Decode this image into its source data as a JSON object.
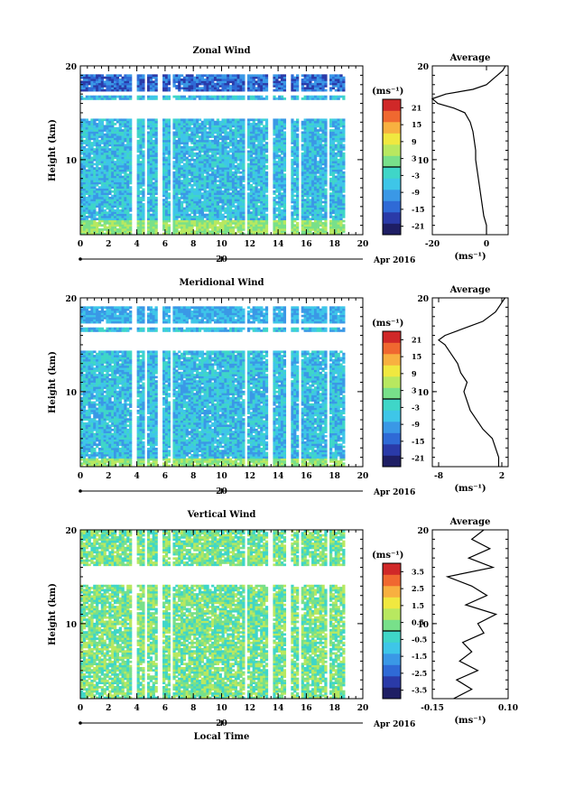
{
  "chart_data": [
    {
      "type": "heatmap",
      "title": "Zonal Wind",
      "ylabel": "Height (km)",
      "xlim": [
        0,
        20
      ],
      "ylim": [
        2,
        20
      ],
      "x_ticks": [
        "0",
        "2",
        "4",
        "6",
        "8",
        "10",
        "12",
        "14",
        "16",
        "18",
        "20"
      ],
      "y_ticks": [
        "10",
        "20"
      ],
      "date_axis": {
        "label": "Apr 2016",
        "day": "20"
      },
      "colorbar": {
        "unit": "(ms⁻¹)",
        "range": [
          -24,
          24
        ],
        "ticks": [
          "21",
          "15",
          "9",
          "3",
          "-3",
          "-9",
          "-15",
          "-21"
        ],
        "colors": [
          "#1e1e64",
          "#2a3aa8",
          "#2f6ad6",
          "#3a98e6",
          "#3ec6e8",
          "#3fd6c8",
          "#78e08a",
          "#b8e860",
          "#f0e840",
          "#f8b040",
          "#f06830",
          "#d02828"
        ]
      },
      "profile": {
        "title": "Average",
        "x_ticks": [
          "-20",
          "0"
        ],
        "xlim": [
          -20,
          8
        ],
        "unit": "(ms⁻¹)",
        "heights": [
          2,
          3,
          4,
          5,
          6,
          7,
          8,
          9,
          10,
          11,
          12,
          13,
          14,
          15,
          15.5,
          16,
          16.5,
          17,
          17.5,
          18,
          18.5,
          19,
          19.5,
          20
        ],
        "values": [
          0,
          0,
          -1,
          -1.5,
          -2,
          -2.5,
          -3,
          -3.5,
          -4,
          -4,
          -4.5,
          -5,
          -6,
          -8,
          -12,
          -18,
          -20,
          -15,
          -5,
          0,
          2,
          4,
          6,
          7
        ]
      }
    },
    {
      "type": "heatmap",
      "title": "Meridional Wind",
      "ylabel": "Height (km)",
      "xlim": [
        0,
        20
      ],
      "ylim": [
        2,
        20
      ],
      "x_ticks": [
        "0",
        "2",
        "4",
        "6",
        "8",
        "10",
        "12",
        "14",
        "16",
        "18",
        "20"
      ],
      "y_ticks": [
        "10",
        "20"
      ],
      "date_axis": {
        "label": "Apr 2016",
        "day": "20"
      },
      "colorbar": {
        "unit": "(ms⁻¹)",
        "range": [
          -24,
          24
        ],
        "ticks": [
          "21",
          "15",
          "9",
          "3",
          "-3",
          "-9",
          "-15",
          "-21"
        ],
        "colors": [
          "#1e1e64",
          "#2a3aa8",
          "#2f6ad6",
          "#3a98e6",
          "#3ec6e8",
          "#3fd6c8",
          "#78e08a",
          "#b8e860",
          "#f0e840",
          "#f8b040",
          "#f06830",
          "#d02828"
        ]
      },
      "profile": {
        "title": "Average",
        "x_ticks": [
          "-8",
          "2"
        ],
        "xlim": [
          -9,
          3
        ],
        "unit": "(ms⁻¹)",
        "heights": [
          2,
          3,
          4,
          5,
          6,
          7,
          8,
          9,
          10,
          11,
          12,
          13,
          14,
          15,
          15.5,
          16,
          16.5,
          17,
          17.5,
          18,
          18.5,
          19,
          19.5,
          20
        ],
        "values": [
          1.5,
          1.5,
          1,
          0.5,
          -1,
          -2,
          -3,
          -3.5,
          -4,
          -3.5,
          -4.5,
          -5,
          -6,
          -7,
          -8,
          -7,
          -5,
          -3,
          -1,
          0,
          1,
          1.5,
          2,
          2.5
        ]
      }
    },
    {
      "type": "heatmap",
      "title": "Vertical Wind",
      "ylabel": "Height (km)",
      "xlabel": "Local Time",
      "xlim": [
        0,
        20
      ],
      "ylim": [
        2,
        20
      ],
      "x_ticks": [
        "0",
        "2",
        "4",
        "6",
        "8",
        "10",
        "12",
        "14",
        "16",
        "18",
        "20"
      ],
      "y_ticks": [
        "10",
        "20"
      ],
      "date_axis": {
        "label": "Apr 2016",
        "day": "20"
      },
      "colorbar": {
        "unit": "(ms⁻¹)",
        "range": [
          -4,
          4
        ],
        "ticks": [
          "3.5",
          "2.5",
          "1.5",
          "0.5",
          "-0.5",
          "-1.5",
          "-2.5",
          "-3.5"
        ],
        "colors": [
          "#1e1e64",
          "#2a3aa8",
          "#2f6ad6",
          "#3a98e6",
          "#3ec6e8",
          "#3fd6c8",
          "#78e08a",
          "#b8e860",
          "#f0e840",
          "#f8b040",
          "#f06830",
          "#d02828"
        ]
      },
      "profile": {
        "title": "Average",
        "x_ticks": [
          "-0.15",
          "0.10"
        ],
        "xlim": [
          -0.15,
          0.1
        ],
        "unit": "(ms⁻¹)",
        "heights": [
          2,
          3,
          4,
          5,
          6,
          7,
          8,
          9,
          10,
          11,
          12,
          13,
          14,
          15,
          16,
          17,
          18,
          19,
          20
        ],
        "values": [
          -0.08,
          -0.02,
          -0.07,
          0.0,
          -0.06,
          -0.02,
          -0.05,
          0.02,
          0.0,
          0.06,
          -0.04,
          0.03,
          -0.02,
          -0.1,
          0.05,
          -0.03,
          0.04,
          -0.02,
          0.02
        ]
      }
    }
  ]
}
